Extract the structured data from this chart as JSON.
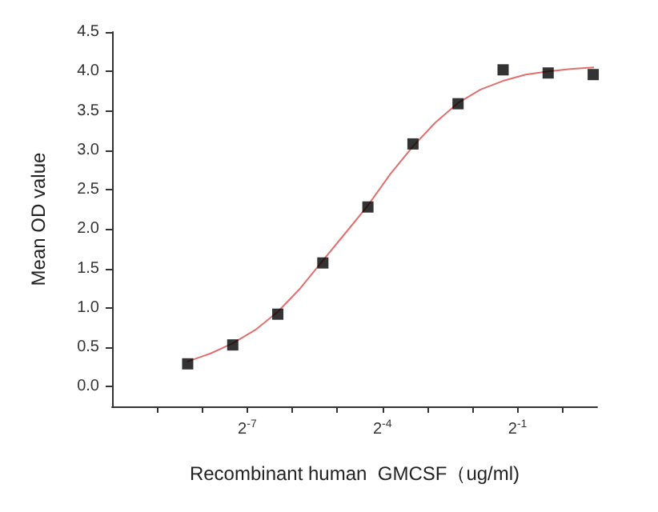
{
  "chart_data": {
    "type": "scatter",
    "xlabel": "Recombinant human  GMCSF（ug/ml)",
    "ylabel": "Mean OD value",
    "log": "x",
    "x": [
      0.003125,
      0.00625,
      0.0125,
      0.025,
      0.05,
      0.1,
      0.2,
      0.4,
      0.8,
      1.6
    ],
    "series": [
      {
        "color": "#000000",
        "marker": "square",
        "values": [
          0.29,
          0.53,
          0.92,
          1.57,
          2.28,
          3.08,
          3.59,
          4.02,
          3.98,
          3.96
        ]
      },
      {
        "type": "line",
        "color": "#e07070",
        "marker": "none",
        "line_style": "solid",
        "x": [
          0.003125,
          0.00442,
          0.00625,
          0.00884,
          0.0125,
          0.0177,
          0.025,
          0.0354,
          0.05,
          0.0707,
          0.1,
          0.141,
          0.2,
          0.283,
          0.4,
          0.566,
          0.8,
          1.13,
          1.6
        ],
        "values": [
          0.32,
          0.42,
          0.55,
          0.72,
          0.95,
          1.25,
          1.6,
          1.95,
          2.3,
          2.7,
          3.05,
          3.35,
          3.6,
          3.77,
          3.88,
          3.96,
          4.0,
          4.03,
          4.05
        ]
      }
    ],
    "xlim": [
      0.0009765625,
      1.7
    ],
    "xticks": [
      {
        "value": 0.001953125,
        "label": null
      },
      {
        "value": 0.00390625,
        "label": null
      },
      {
        "value": 0.0078125,
        "label": "2$^{-7}$"
      },
      {
        "value": 0.015625,
        "label": null
      },
      {
        "value": 0.03125,
        "label": null
      },
      {
        "value": 0.0625,
        "label": "2$^{-4}$"
      },
      {
        "value": 0.125,
        "label": null
      },
      {
        "value": 0.25,
        "label": null
      },
      {
        "value": 0.5,
        "label": "2$^{-1}$"
      },
      {
        "value": 1,
        "label": null
      }
    ],
    "ylim": [
      -0.25,
      4.5
    ],
    "yticks": [
      {
        "value": 0,
        "label": "0.0"
      },
      {
        "value": 0.5,
        "label": "0.5"
      },
      {
        "value": 1,
        "label": "1.0"
      },
      {
        "value": 1.5,
        "label": "1.5"
      },
      {
        "value": 2,
        "label": "2.0"
      },
      {
        "value": 2.5,
        "label": "2.5"
      },
      {
        "value": 3,
        "label": "3.0"
      },
      {
        "value": 3.5,
        "label": "3.5"
      },
      {
        "value": 4,
        "label": "4.0"
      },
      {
        "value": 4.5,
        "label": "4.5"
      }
    ],
    "grid": false
  }
}
